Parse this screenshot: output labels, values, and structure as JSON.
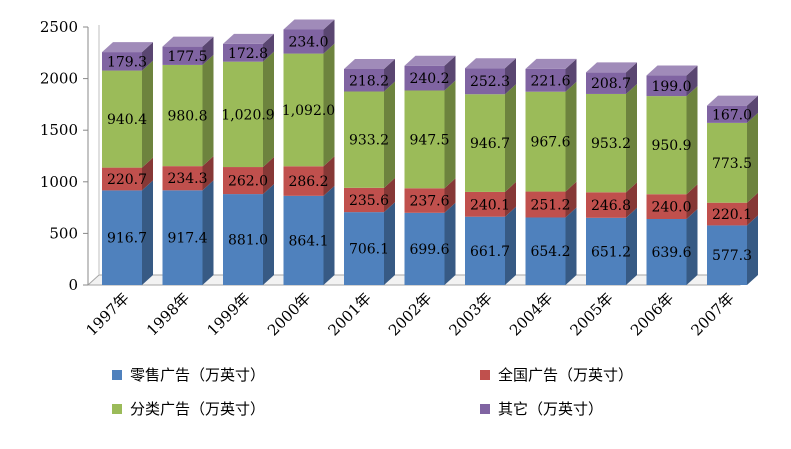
{
  "chart_data": {
    "type": "bar",
    "stacked": true,
    "three_d": true,
    "categories": [
      "1997年",
      "1998年",
      "1999年",
      "2000年",
      "2001年",
      "2002年",
      "2003年",
      "2004年",
      "2005年",
      "2006年",
      "2007年"
    ],
    "series": [
      {
        "name": "零售广告（万英寸）",
        "color": "#4F81BD",
        "values": [
          916.7,
          917.4,
          881.0,
          864.1,
          706.1,
          699.6,
          661.7,
          654.2,
          651.2,
          639.6,
          577.3
        ],
        "labels": [
          "916.7",
          "917.4",
          "881.0",
          "864.1",
          "706.1",
          "699.6",
          "661.7",
          "654.2",
          "651.2",
          "639.6",
          "577.3"
        ]
      },
      {
        "name": "全国广告（万英寸）",
        "color": "#C0504D",
        "values": [
          220.7,
          234.3,
          262.0,
          286.2,
          235.6,
          237.6,
          240.1,
          251.2,
          246.8,
          240.0,
          220.1
        ],
        "labels": [
          "220.7",
          "234.3",
          "262.0",
          "286.2",
          "235.6",
          "237.6",
          "240.1",
          "251.2",
          "246.8",
          "240.0",
          "220.1"
        ]
      },
      {
        "name": "分类广告（万英寸）",
        "color": "#9BBB59",
        "values": [
          940.4,
          980.8,
          1020.9,
          1092.0,
          933.2,
          947.5,
          946.7,
          967.6,
          953.2,
          950.9,
          773.5
        ],
        "labels": [
          "940.4",
          "980.8",
          "1,020.9",
          "1,092.0",
          "933.2",
          "947.5",
          "946.7",
          "967.6",
          "953.2",
          "950.9",
          "773.5"
        ]
      },
      {
        "name": "其它（万英寸）",
        "color": "#8064A2",
        "values": [
          179.3,
          177.5,
          172.8,
          234.0,
          218.2,
          240.2,
          252.3,
          221.6,
          208.7,
          199.0,
          167.0
        ],
        "labels": [
          "179.3",
          "177.5",
          "172.8",
          "234.0",
          "218.2",
          "240.2",
          "252.3",
          "221.6",
          "208.7",
          "199.0",
          "167.0"
        ]
      }
    ],
    "yticks": [
      "0",
      "500",
      "1000",
      "1500",
      "2000",
      "2500"
    ],
    "ylim": [
      0,
      2500
    ],
    "grid": false,
    "legend": "bottom"
  }
}
